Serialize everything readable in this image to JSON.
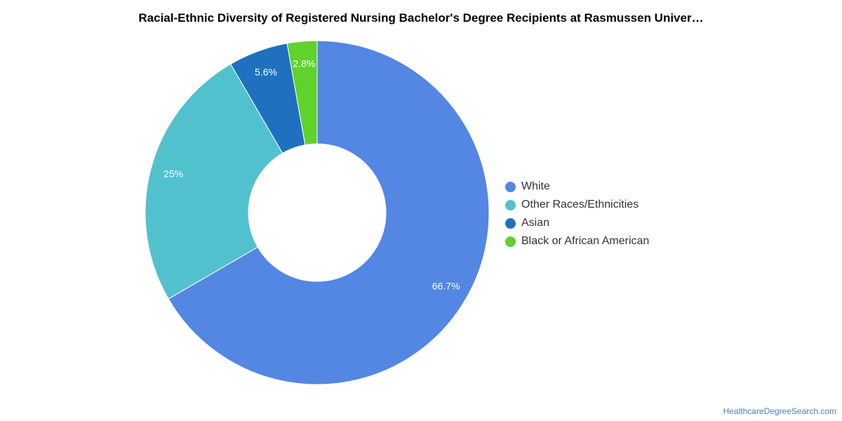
{
  "chart_data": {
    "type": "pie",
    "variant": "donut",
    "title": "Racial-Ethnic Diversity of Registered Nursing Bachelor's Degree Recipients at Rasmussen Univer…",
    "legend_position": "right",
    "slices": [
      {
        "name": "White",
        "value": 66.7,
        "label": "66.7%",
        "color": "#5486e3"
      },
      {
        "name": "Other Races/Ethnicities",
        "value": 25,
        "label": "25%",
        "color": "#52c1ce"
      },
      {
        "name": "Asian",
        "value": 5.6,
        "label": "5.6%",
        "color": "#1f71c0"
      },
      {
        "name": "Black or African American",
        "value": 2.8,
        "label": "2.8%",
        "color": "#5fd22b"
      }
    ]
  },
  "footer": {
    "source": "HealthcareDegreeSearch.com"
  }
}
